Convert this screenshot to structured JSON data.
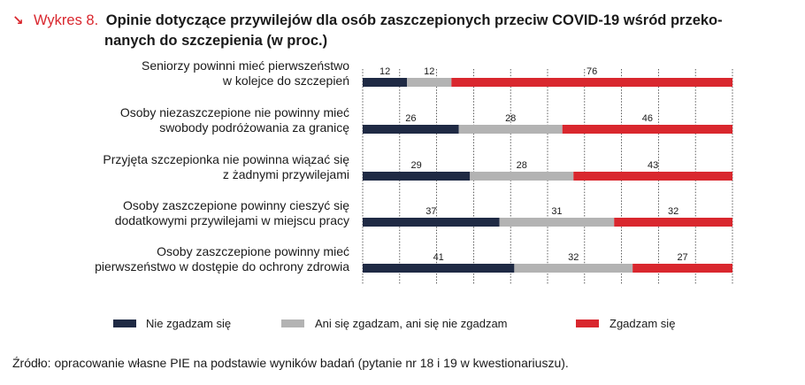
{
  "header": {
    "arrow": "↘",
    "label": "Wykres 8.",
    "title_line1": "Opinie dotyczące przywilejów dla osób zaszczepionych przeciw COVID-19 wśród przeko-",
    "title_line2": "nanych do szczepienia (w proc.)"
  },
  "chart_data": {
    "type": "bar",
    "orientation": "horizontal",
    "stacked": true,
    "categories": [
      [
        "Seniorzy powinni mieć pierwszeństwo",
        "w kolejce do szczepień"
      ],
      [
        "Osoby niezaszczepione nie powinny mieć",
        "swobody podróżowania za granicę"
      ],
      [
        "Przyjęta szczepionka nie powinna wiązać się",
        "z żadnymi przywilejami"
      ],
      [
        "Osoby zaszczepione powinny cieszyć się",
        "dodatkowymi przywilejami w miejscu pracy"
      ],
      [
        "Osoby zaszczepione powinny mieć",
        "pierwszeństwo w dostępie do ochrony zdrowia"
      ]
    ],
    "series": [
      {
        "name": "Nie zgadzam się",
        "color": "#1f2a44",
        "values": [
          12,
          26,
          29,
          37,
          41
        ]
      },
      {
        "name": "Ani się zgadzam, ani się nie zgadzam",
        "color": "#b3b3b3",
        "values": [
          12,
          28,
          28,
          31,
          32
        ]
      },
      {
        "name": "Zgadzam się",
        "color": "#d9272e",
        "values": [
          76,
          46,
          43,
          32,
          27
        ]
      }
    ],
    "xlim": [
      0,
      100
    ],
    "grid": true,
    "legend": "bottom"
  },
  "source": "Źródło: opracowanie własne PIE na podstawie wyników badań (pytanie nr 18 i 19 w kwestionariuszu)."
}
